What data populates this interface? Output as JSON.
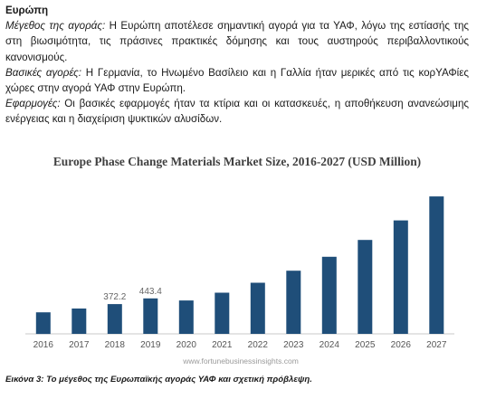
{
  "section": {
    "heading": "Ευρώπη",
    "paragraphs": [
      {
        "label": "Μέγεθος της αγοράς:",
        "text": " Η Ευρώπη αποτέλεσε σημαντική αγορά για τα ΥΑΦ, λόγω της εστίασής της στη βιωσιμότητα, τις πράσινες πρακτικές δόμησης και τους αυστηρούς περιβαλλοντικούς κανονισμούς."
      },
      {
        "label": "Βασικές αγορές:",
        "text": " Η Γερμανία, το Ηνωμένο Βασίλειο και η Γαλλία ήταν μερικές από τις κορΥΑΦίες χώρες στην αγορά ΥΑΦ στην Ευρώπη."
      },
      {
        "label": "Εφαρμογές:",
        "text": " Οι βασικές εφαρμογές ήταν τα κτίρια και οι κατασκευές, η αποθήκευση ανανεώσιμης ενέργειας και η διαχείριση ψυκτικών αλυσίδων."
      }
    ]
  },
  "chart_data": {
    "type": "bar",
    "title": "Europe Phase Change Materials Market Size, 2016-2027 (USD Million)",
    "categories": [
      "2016",
      "2017",
      "2018",
      "2019",
      "2020",
      "2021",
      "2022",
      "2023",
      "2024",
      "2025",
      "2026",
      "2027"
    ],
    "values": [
      270,
      317,
      372.2,
      443.4,
      418,
      515,
      640,
      790,
      965,
      1175,
      1420,
      1720
    ],
    "data_labels": [
      "",
      "",
      "372.2",
      "443.4",
      "",
      "",
      "",
      "",
      "",
      "",
      "",
      ""
    ],
    "ylim": [
      0,
      1800
    ],
    "bar_color": "#1f4e79",
    "watermark": "www.fortunebusinessinsights.com"
  },
  "caption": "Εικόνα 3: Το μέγεθος της Ευρωπαϊκής αγοράς ΥΑΦ και σχετική πρόβλεψη."
}
